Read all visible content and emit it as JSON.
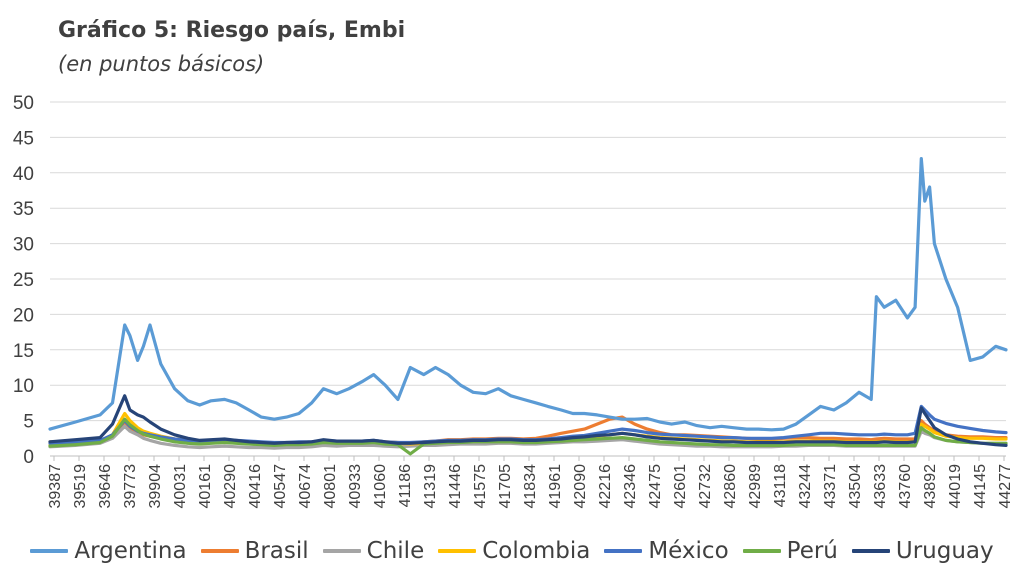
{
  "chart_data": {
    "type": "line",
    "title": "Gráfico 5: Riesgo país, Embi",
    "subtitle": "(en puntos básicos)",
    "ylim": [
      0,
      50
    ],
    "yticks": [
      0,
      5,
      10,
      15,
      20,
      25,
      30,
      35,
      40,
      45,
      50
    ],
    "x_tick_labels": [
      "39387",
      "39519",
      "39646",
      "39773",
      "39904",
      "40031",
      "40161",
      "40290",
      "40416",
      "40547",
      "40674",
      "40801",
      "40933",
      "41060",
      "41186",
      "41319",
      "41446",
      "41575",
      "41705",
      "41834",
      "41961",
      "42090",
      "42216",
      "42346",
      "42475",
      "42601",
      "42732",
      "42860",
      "42989",
      "43118",
      "43244",
      "43371",
      "43504",
      "43633",
      "43760",
      "43892",
      "44019",
      "44145",
      "44277"
    ],
    "x": [
      39387,
      39519,
      39646,
      39710,
      39773,
      39800,
      39840,
      39870,
      39904,
      39960,
      40031,
      40100,
      40161,
      40220,
      40290,
      40350,
      40416,
      40480,
      40547,
      40610,
      40674,
      40740,
      40801,
      40870,
      40933,
      41000,
      41060,
      41120,
      41186,
      41250,
      41319,
      41380,
      41446,
      41510,
      41575,
      41640,
      41705,
      41770,
      41834,
      41900,
      41961,
      42030,
      42090,
      42150,
      42216,
      42280,
      42346,
      42410,
      42475,
      42540,
      42601,
      42670,
      42732,
      42800,
      42860,
      42920,
      42989,
      43050,
      43118,
      43180,
      43244,
      43310,
      43371,
      43440,
      43504,
      43570,
      43633,
      43660,
      43700,
      43760,
      43820,
      43860,
      43892,
      43910,
      43935,
      43960,
      44019,
      44080,
      44145,
      44210,
      44277,
      44330
    ],
    "grid": true,
    "legend_position": "bottom",
    "series": [
      {
        "name": "Argentina",
        "color": "#5B9BD5",
        "values": [
          3.8,
          4.8,
          5.8,
          7.5,
          18.5,
          17,
          13.5,
          15.5,
          18.5,
          13,
          9.5,
          7.8,
          7.2,
          7.8,
          8,
          7.5,
          6.5,
          5.5,
          5.2,
          5.5,
          6,
          7.5,
          9.5,
          8.8,
          9.5,
          10.5,
          11.5,
          10,
          8,
          12.5,
          11.5,
          12.5,
          11.5,
          10,
          9,
          8.8,
          9.5,
          8.5,
          8,
          7.5,
          7,
          6.5,
          6,
          6,
          5.8,
          5.5,
          5.2,
          5.2,
          5.3,
          4.8,
          4.5,
          4.8,
          4.3,
          4,
          4.2,
          4,
          3.8,
          3.8,
          3.7,
          3.8,
          4.5,
          5.8,
          7,
          6.5,
          7.5,
          9,
          8,
          22.5,
          21,
          22,
          19.5,
          21,
          42,
          36,
          38,
          30,
          25,
          21,
          13.5,
          14,
          15.5,
          15
        ]
      },
      {
        "name": "Brasil",
        "color": "#ED7D31",
        "values": [
          2,
          2,
          2.2,
          2.8,
          4.8,
          4,
          3.3,
          3,
          2.8,
          2.5,
          2.2,
          2,
          1.9,
          2,
          2.1,
          2,
          1.9,
          1.8,
          1.7,
          1.8,
          1.8,
          1.9,
          2.2,
          2,
          2,
          2,
          2.1,
          2,
          1.9,
          1.8,
          2,
          2.1,
          2.3,
          2.3,
          2.4,
          2.4,
          2.5,
          2.5,
          2.4,
          2.5,
          2.8,
          3.2,
          3.5,
          3.8,
          4.5,
          5.2,
          5.5,
          4.5,
          3.8,
          3.3,
          3,
          3,
          2.9,
          2.8,
          2.7,
          2.6,
          2.5,
          2.4,
          2.4,
          2.5,
          2.6,
          2.6,
          2.5,
          2.5,
          2.4,
          2.4,
          2.3,
          2.4,
          2.5,
          2.4,
          2.4,
          2.4,
          5,
          4.5,
          4,
          3.5,
          3,
          2.8,
          2.7,
          2.7,
          2.6,
          2.6
        ]
      },
      {
        "name": "Chile",
        "color": "#A5A5A5",
        "values": [
          1.3,
          1.5,
          1.8,
          2.5,
          4.2,
          3.5,
          3,
          2.5,
          2.2,
          1.8,
          1.5,
          1.3,
          1.2,
          1.3,
          1.4,
          1.3,
          1.2,
          1.2,
          1.1,
          1.2,
          1.2,
          1.3,
          1.5,
          1.4,
          1.5,
          1.5,
          1.5,
          1.4,
          1.3,
          1.4,
          1.5,
          1.5,
          1.6,
          1.7,
          1.7,
          1.7,
          1.8,
          1.8,
          1.7,
          1.7,
          1.8,
          1.9,
          2,
          2,
          2.1,
          2.2,
          2.3,
          2.1,
          1.9,
          1.7,
          1.6,
          1.5,
          1.4,
          1.4,
          1.3,
          1.3,
          1.3,
          1.3,
          1.3,
          1.4,
          1.4,
          1.5,
          1.5,
          1.5,
          1.4,
          1.4,
          1.4,
          1.4,
          1.4,
          1.4,
          1.4,
          1.4,
          3.5,
          3.2,
          3,
          2.6,
          2.2,
          2,
          1.9,
          1.8,
          1.8,
          1.8
        ]
      },
      {
        "name": "Colombia",
        "color": "#FFC000",
        "values": [
          1.5,
          1.8,
          2,
          3,
          6,
          5,
          4,
          3.5,
          3.2,
          2.8,
          2.4,
          2.2,
          2,
          2.1,
          2.2,
          2,
          1.9,
          1.8,
          1.7,
          1.8,
          1.8,
          1.9,
          2.1,
          2,
          2,
          2,
          2.1,
          1.9,
          1.8,
          1.7,
          1.8,
          1.9,
          2,
          2,
          2.1,
          2.1,
          2.1,
          2.1,
          2,
          2,
          2.1,
          2.3,
          2.5,
          2.6,
          2.8,
          3,
          3.2,
          3,
          2.8,
          2.6,
          2.5,
          2.4,
          2.3,
          2.2,
          2.1,
          2.1,
          2,
          2,
          2,
          2,
          2.1,
          2.1,
          2.1,
          2.1,
          2,
          2,
          2,
          2,
          2.1,
          2,
          2,
          2,
          4.5,
          4.2,
          3.8,
          3.3,
          2.8,
          2.6,
          2.5,
          2.5,
          2.4,
          2.4
        ]
      },
      {
        "name": "México",
        "color": "#4472C4",
        "values": [
          1.8,
          2,
          2.2,
          3,
          5,
          4.2,
          3.5,
          3.2,
          3,
          2.7,
          2.4,
          2.2,
          2.1,
          2.2,
          2.3,
          2.2,
          2.1,
          2,
          1.9,
          1.9,
          2,
          2,
          2.2,
          2.1,
          2.1,
          2.1,
          2.2,
          2,
          1.9,
          1.9,
          2,
          2.1,
          2.2,
          2.2,
          2.3,
          2.3,
          2.4,
          2.4,
          2.3,
          2.3,
          2.4,
          2.6,
          2.8,
          2.9,
          3.2,
          3.5,
          3.8,
          3.6,
          3.3,
          3.1,
          3,
          2.9,
          2.8,
          2.7,
          2.6,
          2.6,
          2.5,
          2.5,
          2.5,
          2.6,
          2.8,
          3,
          3.2,
          3.2,
          3.1,
          3,
          3,
          3,
          3.1,
          3,
          3,
          3.2,
          7,
          6.5,
          5.8,
          5.2,
          4.6,
          4.2,
          3.9,
          3.6,
          3.4,
          3.3
        ]
      },
      {
        "name": "Perú",
        "color": "#70AD47",
        "values": [
          1.4,
          1.6,
          1.9,
          2.8,
          5.2,
          4.4,
          3.6,
          3.1,
          2.8,
          2.4,
          2,
          1.8,
          1.7,
          1.8,
          1.9,
          1.8,
          1.7,
          1.6,
          1.5,
          1.6,
          1.6,
          1.7,
          1.9,
          1.8,
          1.8,
          1.8,
          1.9,
          1.7,
          1.6,
          0.3,
          1.7,
          1.8,
          1.9,
          1.9,
          2,
          2,
          2,
          2,
          1.9,
          1.9,
          2,
          2.1,
          2.2,
          2.3,
          2.4,
          2.5,
          2.6,
          2.4,
          2.2,
          2,
          1.9,
          1.8,
          1.7,
          1.6,
          1.6,
          1.5,
          1.5,
          1.5,
          1.5,
          1.5,
          1.6,
          1.6,
          1.6,
          1.6,
          1.5,
          1.5,
          1.5,
          1.5,
          1.5,
          1.5,
          1.5,
          1.5,
          4,
          3.6,
          3.2,
          2.7,
          2.2,
          2,
          1.9,
          1.8,
          1.8,
          1.8
        ]
      },
      {
        "name": "Uruguay",
        "color": "#264478",
        "values": [
          2,
          2.3,
          2.6,
          4.5,
          8.5,
          6.5,
          5.8,
          5.5,
          4.8,
          3.8,
          3,
          2.5,
          2.2,
          2.3,
          2.4,
          2.2,
          2,
          1.9,
          1.8,
          1.9,
          1.9,
          2,
          2.3,
          2.1,
          2.1,
          2.1,
          2.2,
          2,
          1.8,
          1.8,
          1.9,
          2,
          2.1,
          2.1,
          2.2,
          2.2,
          2.3,
          2.3,
          2.2,
          2.2,
          2.3,
          2.4,
          2.6,
          2.7,
          2.9,
          3,
          3.2,
          3,
          2.7,
          2.5,
          2.4,
          2.3,
          2.2,
          2.1,
          2,
          2,
          1.9,
          1.9,
          1.9,
          1.9,
          2,
          2,
          2,
          2,
          1.9,
          1.9,
          1.9,
          1.9,
          2,
          1.9,
          1.9,
          2,
          6.8,
          6,
          5,
          4,
          3,
          2.4,
          2,
          1.8,
          1.6,
          1.5
        ]
      }
    ]
  }
}
